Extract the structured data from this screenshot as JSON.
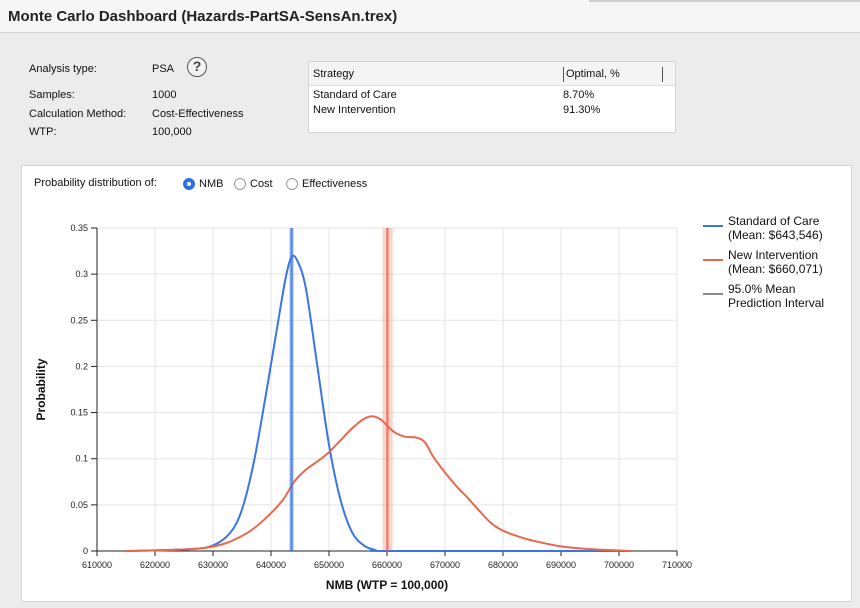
{
  "window": {
    "title": "Monte Carlo Dashboard (Hazards-PartSA-SensAn.trex)"
  },
  "info": {
    "analysis_type_label": "Analysis type:",
    "analysis_type_value": "PSA",
    "samples_label": "Samples:",
    "samples_value": "1000",
    "calc_method_label": "Calculation Method:",
    "calc_method_value": "Cost-Effectiveness",
    "wtp_label": "WTP:",
    "wtp_value": "100,000",
    "help_glyph": "?"
  },
  "strategy_table": {
    "headers": [
      "Strategy",
      "Optimal, %"
    ],
    "rows": [
      {
        "strategy": "Standard of Care",
        "optimal": "8.70%"
      },
      {
        "strategy": "New Intervention",
        "optimal": "91.30%"
      }
    ]
  },
  "distribution_selector": {
    "label": "Probability distribution of:",
    "options": [
      "NMB",
      "Cost",
      "Effectiveness"
    ],
    "selected": "NMB"
  },
  "colors": {
    "standard_of_care": "#3b74e4",
    "new_intervention": "#e8674d",
    "interval": "#8a8a8a",
    "radio_selected": "#2f6fe4"
  },
  "chart_data": {
    "type": "line",
    "xlabel": "NMB (WTP = 100,000)",
    "ylabel": "Probability",
    "xlim": [
      610000,
      710000
    ],
    "ylim": [
      0,
      0.35
    ],
    "x_ticks": [
      "610000",
      "620000",
      "630000",
      "640000",
      "650000",
      "660000",
      "670000",
      "680000",
      "690000",
      "700000",
      "710000"
    ],
    "y_ticks": [
      "0",
      "0.05",
      "0.1",
      "0.15",
      "0.2",
      "0.25",
      "0.3",
      "0.35"
    ],
    "grid": true,
    "legend_position": "right",
    "legend": [
      {
        "line1": "Standard of Care",
        "line2": "(Mean: $643,546)",
        "color": "#3b74e4"
      },
      {
        "line1": "New Intervention",
        "line2": "(Mean: $660,071)",
        "color": "#e8674d"
      },
      {
        "line1": "95.0% Mean",
        "line2": "Prediction Interval",
        "color": "#8a8a8a"
      }
    ],
    "series": [
      {
        "name": "Standard of Care",
        "color": "#3b74e4",
        "mean": 643546,
        "points": [
          [
            615000,
            0
          ],
          [
            626000,
            0.002
          ],
          [
            630000,
            0.006
          ],
          [
            633000,
            0.02
          ],
          [
            635000,
            0.045
          ],
          [
            637000,
            0.095
          ],
          [
            639000,
            0.165
          ],
          [
            641000,
            0.24
          ],
          [
            642500,
            0.295
          ],
          [
            643500,
            0.318
          ],
          [
            644500,
            0.315
          ],
          [
            646000,
            0.285
          ],
          [
            648000,
            0.2
          ],
          [
            650000,
            0.115
          ],
          [
            652000,
            0.055
          ],
          [
            654000,
            0.02
          ],
          [
            656000,
            0.006
          ],
          [
            658000,
            0.001
          ],
          [
            660000,
            0
          ],
          [
            690000,
            0
          ],
          [
            702000,
            0
          ]
        ]
      },
      {
        "name": "New Intervention",
        "color": "#e8674d",
        "mean": 660071,
        "points": [
          [
            615000,
            0
          ],
          [
            622000,
            0.001
          ],
          [
            628000,
            0.003
          ],
          [
            632000,
            0.008
          ],
          [
            636000,
            0.02
          ],
          [
            639000,
            0.035
          ],
          [
            642000,
            0.055
          ],
          [
            644000,
            0.075
          ],
          [
            646000,
            0.088
          ],
          [
            648000,
            0.097
          ],
          [
            650000,
            0.107
          ],
          [
            652000,
            0.12
          ],
          [
            654000,
            0.133
          ],
          [
            656000,
            0.143
          ],
          [
            657500,
            0.146
          ],
          [
            659000,
            0.142
          ],
          [
            661000,
            0.13
          ],
          [
            663000,
            0.124
          ],
          [
            665000,
            0.123
          ],
          [
            666500,
            0.118
          ],
          [
            668000,
            0.102
          ],
          [
            670000,
            0.085
          ],
          [
            672000,
            0.07
          ],
          [
            674000,
            0.057
          ],
          [
            676000,
            0.043
          ],
          [
            678000,
            0.03
          ],
          [
            680000,
            0.022
          ],
          [
            683000,
            0.015
          ],
          [
            686000,
            0.01
          ],
          [
            690000,
            0.005
          ],
          [
            695000,
            0.002
          ],
          [
            702000,
            0
          ]
        ]
      }
    ],
    "intervals": [
      {
        "series": "Standard of Care",
        "low": 643300,
        "high": 643800,
        "color": "#3b74e4"
      },
      {
        "series": "New Intervention",
        "low": 659400,
        "high": 660800,
        "color": "#e8674d"
      }
    ]
  }
}
